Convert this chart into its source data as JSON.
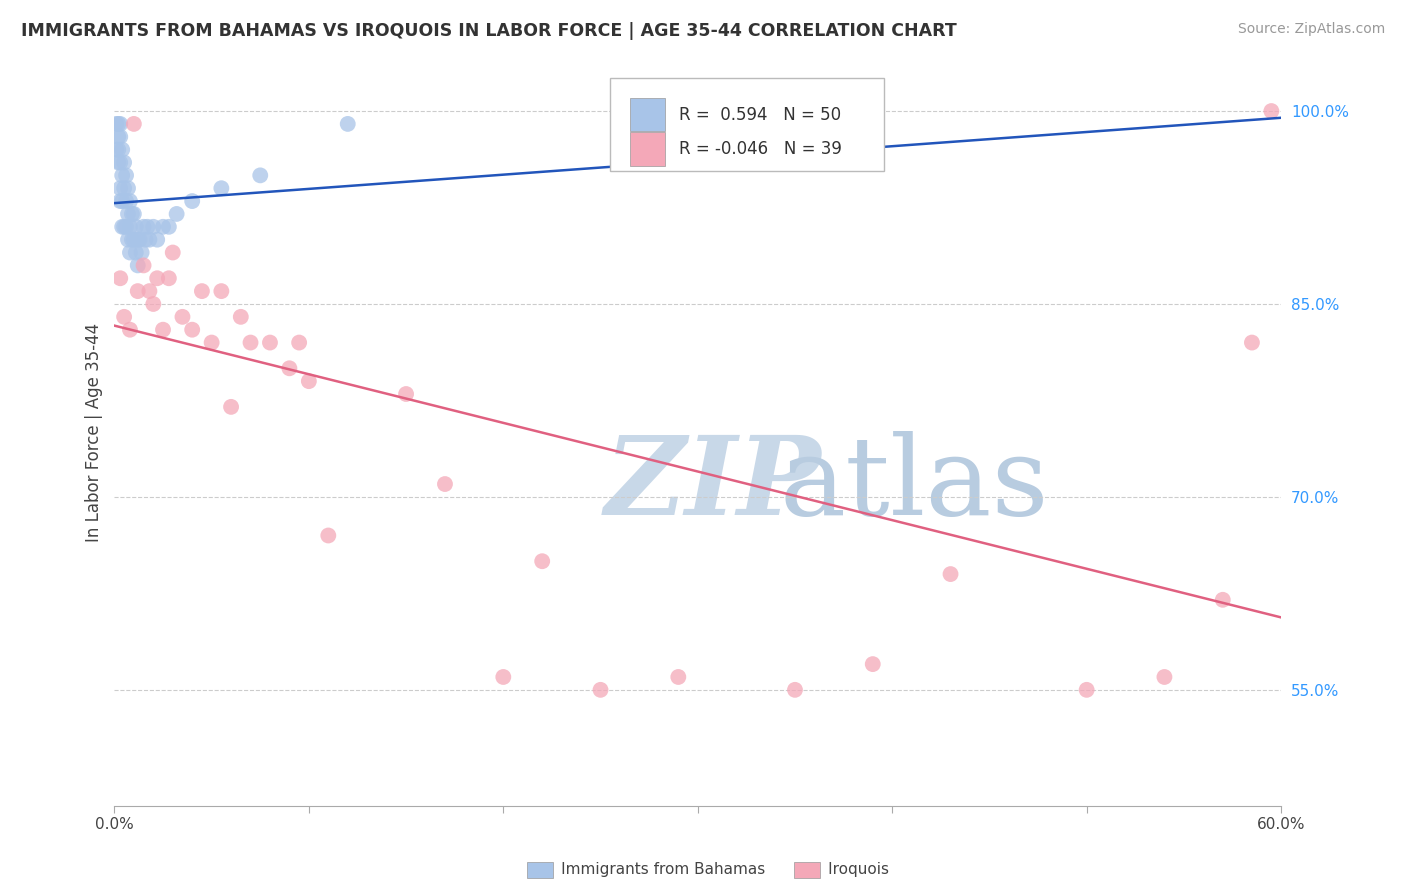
{
  "title": "IMMIGRANTS FROM BAHAMAS VS IROQUOIS IN LABOR FORCE | AGE 35-44 CORRELATION CHART",
  "source": "Source: ZipAtlas.com",
  "ylabel": "In Labor Force | Age 35-44",
  "xlim": [
    0.0,
    0.6
  ],
  "ylim": [
    0.46,
    1.04
  ],
  "xticks": [
    0.0,
    0.1,
    0.2,
    0.3,
    0.4,
    0.5,
    0.6
  ],
  "xticklabels": [
    "0.0%",
    "",
    "",
    "",
    "",
    "",
    "60.0%"
  ],
  "yticks": [
    0.55,
    0.7,
    0.85,
    1.0
  ],
  "yticklabels": [
    "55.0%",
    "70.0%",
    "85.0%",
    "100.0%"
  ],
  "blue_R": 0.594,
  "blue_N": 50,
  "pink_R": -0.046,
  "pink_N": 39,
  "blue_color": "#a8c4e8",
  "pink_color": "#f4a8b8",
  "blue_line_color": "#2255bb",
  "pink_line_color": "#e06080",
  "watermark_color": "#daeaf8",
  "blue_scatter_x": [
    0.001,
    0.001,
    0.002,
    0.002,
    0.002,
    0.002,
    0.003,
    0.003,
    0.003,
    0.003,
    0.003,
    0.004,
    0.004,
    0.004,
    0.004,
    0.005,
    0.005,
    0.005,
    0.006,
    0.006,
    0.006,
    0.007,
    0.007,
    0.007,
    0.008,
    0.008,
    0.008,
    0.009,
    0.009,
    0.01,
    0.01,
    0.011,
    0.011,
    0.012,
    0.012,
    0.013,
    0.014,
    0.015,
    0.016,
    0.017,
    0.018,
    0.02,
    0.022,
    0.025,
    0.028,
    0.032,
    0.04,
    0.055,
    0.075,
    0.12
  ],
  "blue_scatter_y": [
    0.99,
    0.97,
    0.99,
    0.98,
    0.97,
    0.96,
    0.99,
    0.98,
    0.96,
    0.94,
    0.93,
    0.97,
    0.95,
    0.93,
    0.91,
    0.96,
    0.94,
    0.91,
    0.95,
    0.93,
    0.91,
    0.94,
    0.92,
    0.9,
    0.93,
    0.91,
    0.89,
    0.92,
    0.9,
    0.92,
    0.9,
    0.91,
    0.89,
    0.9,
    0.88,
    0.9,
    0.89,
    0.91,
    0.9,
    0.91,
    0.9,
    0.91,
    0.9,
    0.91,
    0.91,
    0.92,
    0.93,
    0.94,
    0.95,
    0.99
  ],
  "pink_scatter_x": [
    0.003,
    0.005,
    0.008,
    0.01,
    0.012,
    0.015,
    0.018,
    0.02,
    0.022,
    0.025,
    0.028,
    0.03,
    0.035,
    0.04,
    0.045,
    0.05,
    0.055,
    0.06,
    0.065,
    0.07,
    0.08,
    0.09,
    0.095,
    0.1,
    0.11,
    0.15,
    0.17,
    0.2,
    0.22,
    0.25,
    0.29,
    0.35,
    0.39,
    0.43,
    0.5,
    0.54,
    0.57,
    0.585,
    0.595
  ],
  "pink_scatter_y": [
    0.87,
    0.84,
    0.83,
    0.99,
    0.86,
    0.88,
    0.86,
    0.85,
    0.87,
    0.83,
    0.87,
    0.89,
    0.84,
    0.83,
    0.86,
    0.82,
    0.86,
    0.77,
    0.84,
    0.82,
    0.82,
    0.8,
    0.82,
    0.79,
    0.67,
    0.78,
    0.71,
    0.56,
    0.65,
    0.55,
    0.56,
    0.55,
    0.57,
    0.64,
    0.55,
    0.56,
    0.62,
    0.82,
    1.0
  ]
}
